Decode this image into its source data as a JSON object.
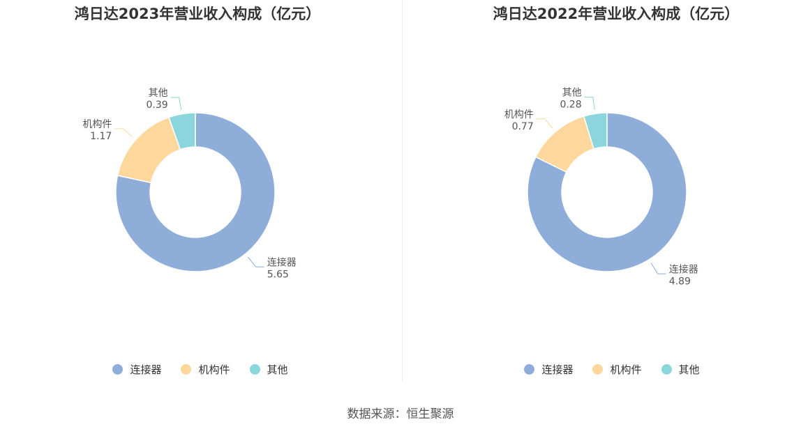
{
  "source_text": "数据来源：恒生聚源",
  "chart_data": [
    {
      "type": "pie",
      "title": "鸿日达2023年营业收入构成（亿元）",
      "categories": [
        "连接器",
        "机构件",
        "其他"
      ],
      "values": [
        5.65,
        1.17,
        0.39
      ],
      "value_labels": [
        "5.65",
        "1.17",
        "0.39"
      ],
      "colors": [
        "#8eadd9",
        "#fdd79b",
        "#8ad6dc"
      ],
      "legend_position": "bottom"
    },
    {
      "type": "pie",
      "title": "鸿日达2022年营业收入构成（亿元）",
      "categories": [
        "连接器",
        "机构件",
        "其他"
      ],
      "values": [
        4.89,
        0.77,
        0.28
      ],
      "value_labels": [
        "4.89",
        "0.77",
        "0.28"
      ],
      "colors": [
        "#8eadd9",
        "#fdd79b",
        "#8ad6dc"
      ],
      "legend_position": "bottom"
    }
  ]
}
